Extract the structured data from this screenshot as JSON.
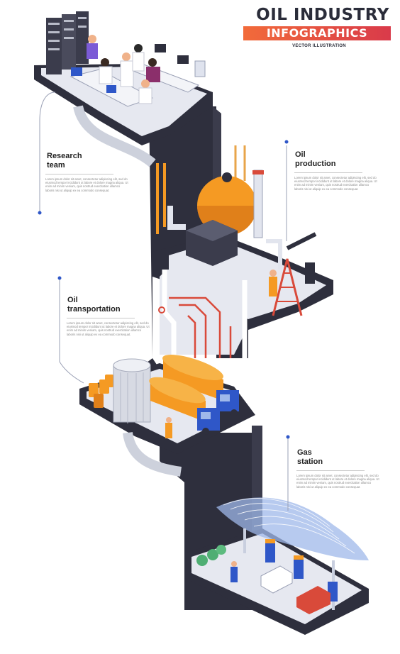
{
  "header": {
    "title": "OIL INDUSTRY",
    "banner": "INFOGRAPHICS",
    "subtitle": "VECTOR ILLUSTRATION"
  },
  "sections": [
    {
      "id": "research",
      "title_lines": [
        "Research",
        "team"
      ],
      "body": "Lorem ipsum dolor sit amet, consectetur adipiscing elit, sed do eiusmod tempor incididunt ut labore et dolore magna aliqua. Ut enim ad minim veniam, quis nostrud exercitation ullamco laboris nisi ut aliquip ex ea commodo consequat."
    },
    {
      "id": "production",
      "title_lines": [
        "Oil",
        "production"
      ],
      "body": "Lorem ipsum dolor sit amet, consectetur adipiscing elit, sed do eiusmod tempor incididunt ut labore et dolore magna aliqua. Ut enim ad minim veniam, quis nostrud exercitation ullamco laboris nisi ut aliquip ex ea commodo consequat."
    },
    {
      "id": "transportation",
      "title_lines": [
        "Oil",
        "transportation"
      ],
      "body": "Lorem ipsum dolor sit amet, consectetur adipiscing elit, sed do eiusmod tempor incididunt ut labore et dolore magna aliqua. Ut enim ad minim veniam, quis nostrud exercitation ullamco laboris nisi ut aliquip ex ea commodo consequat."
    },
    {
      "id": "gas-station",
      "title_lines": [
        "Gas",
        "station"
      ],
      "body": "Lorem ipsum dolor sit amet, consectetur adipiscing elit, sed do eiusmod tempor incididunt ut labore et dolore magna aliqua. Ut enim ad minim veniam, quis nostrud exercitation ullamco laboris nisi ut aliquip ex ea commodo consequat."
    }
  ],
  "colors": {
    "dark_platform": "#2e2f3d",
    "platform_top": "#e6e8f0",
    "accent_orange": "#f59a23",
    "accent_red": "#d94a3a",
    "truck_blue": "#2f57c8",
    "canopy_blue": "#9fb8ea",
    "pipe_light": "#e2e5ee"
  }
}
